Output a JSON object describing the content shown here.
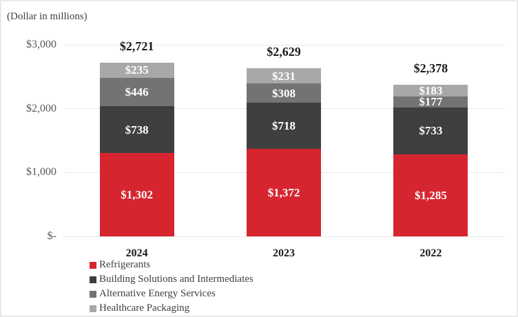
{
  "chart_data": {
    "type": "bar",
    "stacked": true,
    "units_label": "(Dollar in millions)",
    "categories": [
      "2024",
      "2023",
      "2022"
    ],
    "series": [
      {
        "name": "Refrigerants",
        "color": "#D7252F",
        "values": [
          1302,
          1372,
          1285
        ],
        "labels": [
          "$1,302",
          "$1,372",
          "$1,285"
        ]
      },
      {
        "name": "Building Solutions and Intermediates",
        "color": "#3F3F3F",
        "values": [
          738,
          718,
          733
        ],
        "labels": [
          "$738",
          "$718",
          "$733"
        ]
      },
      {
        "name": "Alternative Energy Services",
        "color": "#737373",
        "values": [
          446,
          308,
          177
        ],
        "labels": [
          "$446",
          "$308",
          "$177"
        ]
      },
      {
        "name": "Healthcare Packaging",
        "color": "#A8A8A8",
        "values": [
          235,
          231,
          183
        ],
        "labels": [
          "$235",
          "$231",
          "$183"
        ]
      }
    ],
    "totals": [
      2721,
      2629,
      2378
    ],
    "total_labels": [
      "$2,721",
      "$2,629",
      "$2,378"
    ],
    "y_axis": {
      "min": 0,
      "max": 3000,
      "grid": true,
      "ticks": [
        {
          "value": 3000,
          "label": "$3,000"
        },
        {
          "value": 2000,
          "label": "$2,000"
        },
        {
          "value": 1000,
          "label": "$1,000"
        },
        {
          "value": 0,
          "label": "$-"
        }
      ]
    },
    "legend": {
      "position": "bottom-left",
      "entries": [
        "Refrigerants",
        "Building Solutions and Intermediates",
        "Alternative Energy Services",
        "Healthcare Packaging"
      ]
    },
    "label_text_color": "#FFFFFF"
  }
}
